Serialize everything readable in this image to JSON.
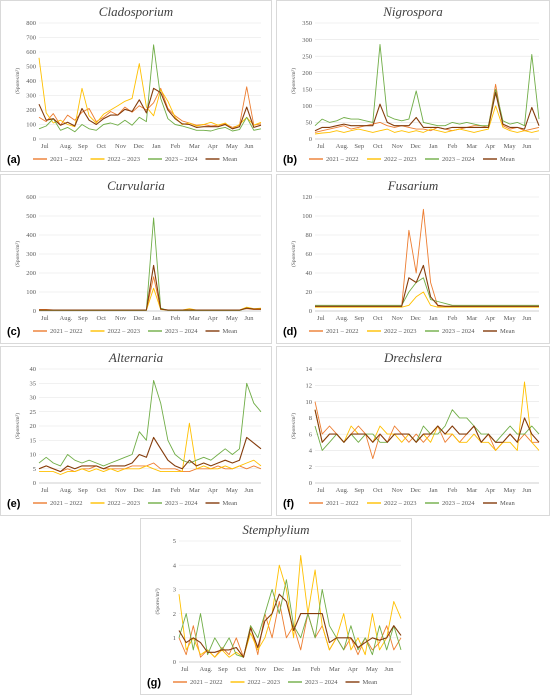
{
  "colors": {
    "s2021": "#ED7D31",
    "s2022": "#FFC000",
    "s2023": "#70AD47",
    "mean": "#843C0C"
  },
  "legend": [
    "2021 – 2022",
    "2022 – 2023",
    "2023 – 2024",
    "Mean"
  ],
  "months": [
    "Jul",
    "Aug.",
    "Sep",
    "Oct",
    "Nov",
    "Dec",
    "Jan",
    "Feb",
    "Mar",
    "Apr",
    "May",
    "Jun"
  ],
  "ylabel": "(Spores/m³)",
  "chart_data": [
    {
      "id": "a",
      "type": "line",
      "title": "Cladosporium",
      "ylim": [
        0,
        800
      ],
      "yticks": [
        0,
        100,
        200,
        300,
        400,
        500,
        600,
        700,
        800
      ],
      "series": [
        {
          "name": "2021 – 2022",
          "values": [
            150,
            120,
            175,
            95,
            165,
            130,
            185,
            210,
            120,
            150,
            190,
            165,
            220,
            185,
            230,
            200,
            250,
            350,
            210,
            160,
            125,
            110,
            95,
            100,
            90,
            95,
            105,
            80,
            95,
            360,
            95,
            105
          ]
        },
        {
          "name": "2022 – 2023",
          "values": [
            560,
            180,
            110,
            130,
            100,
            85,
            350,
            160,
            110,
            170,
            200,
            230,
            260,
            280,
            520,
            220,
            160,
            340,
            260,
            150,
            100,
            110,
            90,
            100,
            115,
            95,
            110,
            70,
            100,
            150,
            95,
            115
          ]
        },
        {
          "name": "2023 – 2024",
          "values": [
            70,
            90,
            140,
            60,
            80,
            50,
            100,
            70,
            60,
            100,
            110,
            95,
            130,
            95,
            150,
            120,
            650,
            280,
            140,
            100,
            90,
            75,
            60,
            60,
            55,
            70,
            80,
            55,
            65,
            150,
            60,
            70
          ]
        },
        {
          "name": "Mean",
          "values": [
            240,
            130,
            140,
            95,
            115,
            90,
            210,
            130,
            100,
            140,
            165,
            165,
            205,
            190,
            270,
            180,
            350,
            320,
            200,
            140,
            105,
            100,
            80,
            85,
            85,
            85,
            100,
            70,
            85,
            220,
            80,
            95
          ]
        }
      ]
    },
    {
      "id": "b",
      "type": "line",
      "title": "Nigrospora",
      "ylim": [
        0,
        350
      ],
      "yticks": [
        0,
        50,
        100,
        150,
        200,
        250,
        300,
        350
      ],
      "series": [
        {
          "name": "2021 – 2022",
          "values": [
            20,
            25,
            30,
            35,
            40,
            30,
            35,
            40,
            45,
            50,
            40,
            35,
            40,
            35,
            30,
            30,
            25,
            35,
            30,
            25,
            30,
            35,
            40,
            40,
            35,
            165,
            40,
            30,
            35,
            25,
            30,
            35
          ]
        },
        {
          "name": "2022 – 2023",
          "values": [
            15,
            18,
            20,
            25,
            20,
            25,
            30,
            25,
            20,
            25,
            30,
            20,
            25,
            20,
            25,
            20,
            30,
            25,
            20,
            25,
            30,
            25,
            20,
            25,
            30,
            100,
            35,
            25,
            20,
            25,
            20,
            25
          ]
        },
        {
          "name": "2023 – 2024",
          "values": [
            40,
            60,
            50,
            55,
            65,
            60,
            60,
            55,
            50,
            285,
            70,
            60,
            55,
            60,
            145,
            50,
            45,
            40,
            40,
            50,
            45,
            50,
            45,
            40,
            40,
            150,
            55,
            45,
            50,
            40,
            255,
            60
          ]
        },
        {
          "name": "Mean",
          "values": [
            25,
            35,
            35,
            40,
            45,
            40,
            40,
            40,
            40,
            105,
            50,
            40,
            40,
            40,
            65,
            35,
            35,
            35,
            30,
            35,
            35,
            35,
            35,
            35,
            35,
            140,
            45,
            35,
            35,
            30,
            95,
            40
          ]
        }
      ]
    },
    {
      "id": "c",
      "type": "line",
      "title": "Curvularia",
      "ylim": [
        0,
        600
      ],
      "yticks": [
        0,
        100,
        200,
        300,
        400,
        500,
        600
      ],
      "series": [
        {
          "name": "2021 – 2022",
          "values": [
            8,
            8,
            6,
            6,
            6,
            6,
            6,
            6,
            6,
            6,
            6,
            6,
            6,
            6,
            6,
            6,
            180,
            10,
            6,
            6,
            6,
            6,
            6,
            6,
            6,
            6,
            6,
            6,
            6,
            12,
            8,
            8
          ]
        },
        {
          "name": "2022 – 2023",
          "values": [
            5,
            5,
            5,
            5,
            5,
            5,
            5,
            5,
            5,
            5,
            5,
            5,
            5,
            5,
            5,
            5,
            120,
            8,
            5,
            5,
            5,
            12,
            5,
            5,
            5,
            5,
            5,
            5,
            5,
            20,
            12,
            15
          ]
        },
        {
          "name": "2023 – 2024",
          "values": [
            3,
            3,
            3,
            3,
            3,
            3,
            3,
            3,
            3,
            3,
            3,
            3,
            3,
            3,
            3,
            3,
            490,
            15,
            3,
            3,
            3,
            3,
            3,
            3,
            3,
            3,
            3,
            3,
            3,
            15,
            10,
            10
          ]
        },
        {
          "name": "Mean",
          "values": [
            5,
            5,
            5,
            5,
            5,
            5,
            5,
            5,
            5,
            5,
            5,
            5,
            5,
            5,
            5,
            5,
            240,
            10,
            5,
            5,
            5,
            6,
            5,
            5,
            5,
            5,
            5,
            5,
            5,
            15,
            10,
            10
          ]
        }
      ]
    },
    {
      "id": "d",
      "type": "line",
      "title": "Fusarium",
      "ylim": [
        0,
        120
      ],
      "yticks": [
        0,
        20,
        40,
        60,
        80,
        100,
        120
      ],
      "series": [
        {
          "name": "2021 – 2022",
          "values": [
            5,
            5,
            5,
            5,
            5,
            5,
            5,
            5,
            5,
            5,
            5,
            5,
            5,
            85,
            40,
            107,
            30,
            5,
            5,
            5,
            5,
            5,
            5,
            5,
            5,
            5,
            5,
            5,
            5,
            5,
            5,
            5
          ]
        },
        {
          "name": "2022 – 2023",
          "values": [
            4,
            4,
            4,
            4,
            4,
            4,
            4,
            4,
            4,
            4,
            4,
            4,
            4,
            6,
            15,
            20,
            6,
            4,
            4,
            4,
            4,
            4,
            4,
            4,
            4,
            4,
            4,
            4,
            4,
            4,
            4,
            4
          ]
        },
        {
          "name": "2023 – 2024",
          "values": [
            6,
            6,
            6,
            6,
            6,
            6,
            6,
            6,
            6,
            6,
            6,
            6,
            6,
            20,
            30,
            35,
            12,
            10,
            8,
            6,
            6,
            6,
            6,
            6,
            6,
            6,
            6,
            6,
            6,
            6,
            6,
            6
          ]
        },
        {
          "name": "Mean",
          "values": [
            5,
            5,
            5,
            5,
            5,
            5,
            5,
            5,
            5,
            5,
            5,
            5,
            5,
            35,
            30,
            48,
            15,
            6,
            5,
            5,
            5,
            5,
            5,
            5,
            5,
            5,
            5,
            5,
            5,
            5,
            5,
            5
          ]
        }
      ]
    },
    {
      "id": "e",
      "type": "line",
      "title": "Alternaria",
      "ylim": [
        0,
        40
      ],
      "yticks": [
        0,
        5,
        10,
        15,
        20,
        25,
        30,
        35,
        40
      ],
      "series": [
        {
          "name": "2021 – 2022",
          "values": [
            5,
            6,
            5,
            4,
            5,
            4,
            5,
            5,
            6,
            5,
            5,
            5,
            5,
            6,
            6,
            6,
            7,
            5,
            5,
            5,
            4,
            4,
            5,
            5,
            5,
            6,
            5,
            5,
            6,
            5,
            6,
            5
          ]
        },
        {
          "name": "2022 – 2023",
          "values": [
            4,
            4,
            4,
            3,
            4,
            4,
            5,
            4,
            5,
            4,
            5,
            4,
            5,
            5,
            5,
            6,
            5,
            4,
            4,
            4,
            4,
            21,
            5,
            6,
            5,
            5,
            6,
            5,
            6,
            7,
            8,
            6
          ]
        },
        {
          "name": "2023 – 2024",
          "values": [
            7,
            9,
            7,
            6,
            10,
            8,
            7,
            8,
            7,
            6,
            7,
            8,
            9,
            10,
            18,
            15,
            36,
            28,
            15,
            10,
            8,
            7,
            8,
            9,
            8,
            10,
            12,
            10,
            12,
            35,
            28,
            25
          ]
        },
        {
          "name": "Mean",
          "values": [
            5,
            6,
            5,
            4,
            6,
            5,
            6,
            6,
            6,
            5,
            6,
            6,
            6,
            7,
            10,
            9,
            16,
            12,
            8,
            6,
            5,
            8,
            6,
            7,
            6,
            7,
            8,
            7,
            8,
            16,
            14,
            12
          ]
        }
      ]
    },
    {
      "id": "f",
      "type": "line",
      "title": "Drechslera",
      "ylim": [
        0,
        14
      ],
      "yticks": [
        0,
        2,
        4,
        6,
        8,
        10,
        12,
        14
      ],
      "series": [
        {
          "name": "2021 – 2022",
          "values": [
            10,
            6,
            7,
            6,
            5,
            6,
            7,
            6,
            3,
            6,
            5,
            7,
            6,
            5,
            6,
            5,
            6,
            7,
            5,
            6,
            5,
            6,
            7,
            5,
            6,
            4,
            5,
            6,
            5,
            6,
            5,
            5
          ]
        },
        {
          "name": "2022 – 2023",
          "values": [
            9,
            5,
            6,
            6,
            5,
            7,
            6,
            6,
            5,
            7,
            6,
            6,
            5,
            6,
            5,
            6,
            5,
            7,
            6,
            6,
            5,
            5,
            6,
            5,
            5,
            4,
            5,
            5,
            4,
            12.4,
            5,
            4
          ]
        },
        {
          "name": "2023 – 2024",
          "values": [
            7,
            4,
            5,
            6,
            5,
            6,
            5,
            6,
            6,
            5,
            5,
            6,
            6,
            6,
            5,
            7,
            6,
            6,
            7,
            9,
            8,
            8,
            7,
            6,
            6,
            5,
            6,
            7,
            6,
            6,
            7,
            6
          ]
        },
        {
          "name": "Mean",
          "values": [
            9,
            5,
            6,
            6,
            5,
            6,
            6,
            6,
            5,
            6,
            5,
            6,
            6,
            6,
            5,
            6,
            6,
            7,
            6,
            7,
            6,
            6,
            7,
            5,
            6,
            5,
            5,
            6,
            5,
            8,
            6,
            5
          ]
        }
      ]
    },
    {
      "id": "g",
      "type": "line",
      "title": "Stemphylium",
      "ylim": [
        0,
        5
      ],
      "yticks": [
        0,
        1,
        2,
        3,
        4,
        5
      ],
      "series": [
        {
          "name": "2021 – 2022",
          "values": [
            1,
            0.3,
            1.5,
            0.2,
            0.5,
            0.2,
            0.6,
            0.3,
            1,
            0.2,
            1.5,
            0.3,
            2,
            1,
            2.5,
            1,
            1.5,
            0.5,
            2,
            1,
            1.5,
            0.5,
            1,
            0.5,
            1,
            0.3,
            1,
            0.5,
            0.8,
            1.5,
            0.5,
            1
          ]
        },
        {
          "name": "2022 – 2023",
          "values": [
            2.8,
            0.5,
            1,
            0.3,
            0.5,
            0.2,
            0.5,
            0.2,
            0.4,
            0.2,
            1.2,
            0.5,
            1,
            2,
            4,
            3,
            1,
            4.4,
            2,
            3.8,
            1.5,
            0.5,
            1,
            2,
            0.5,
            1,
            0.3,
            2,
            0.5,
            1,
            2.5,
            1.8
          ]
        },
        {
          "name": "2023 – 2024",
          "values": [
            1,
            2,
            0.5,
            2,
            0.3,
            1,
            0.5,
            1,
            0.3,
            0.2,
            1.5,
            1,
            2,
            3,
            2,
            3.4,
            1.5,
            1,
            2,
            1,
            3,
            1.5,
            1,
            0.5,
            1.5,
            0.5,
            1,
            0.3,
            1.5,
            0.5,
            1.5,
            0.5
          ]
        },
        {
          "name": "Mean",
          "values": [
            1.3,
            0.8,
            1,
            0.8,
            0.4,
            0.4,
            0.5,
            0.5,
            0.6,
            0.2,
            1.4,
            0.6,
            1.7,
            2,
            2.8,
            2.5,
            1.3,
            2,
            2,
            2,
            2,
            0.8,
            1,
            1,
            1,
            0.6,
            0.8,
            1,
            0.9,
            1,
            1.5,
            1.1
          ]
        }
      ]
    }
  ]
}
